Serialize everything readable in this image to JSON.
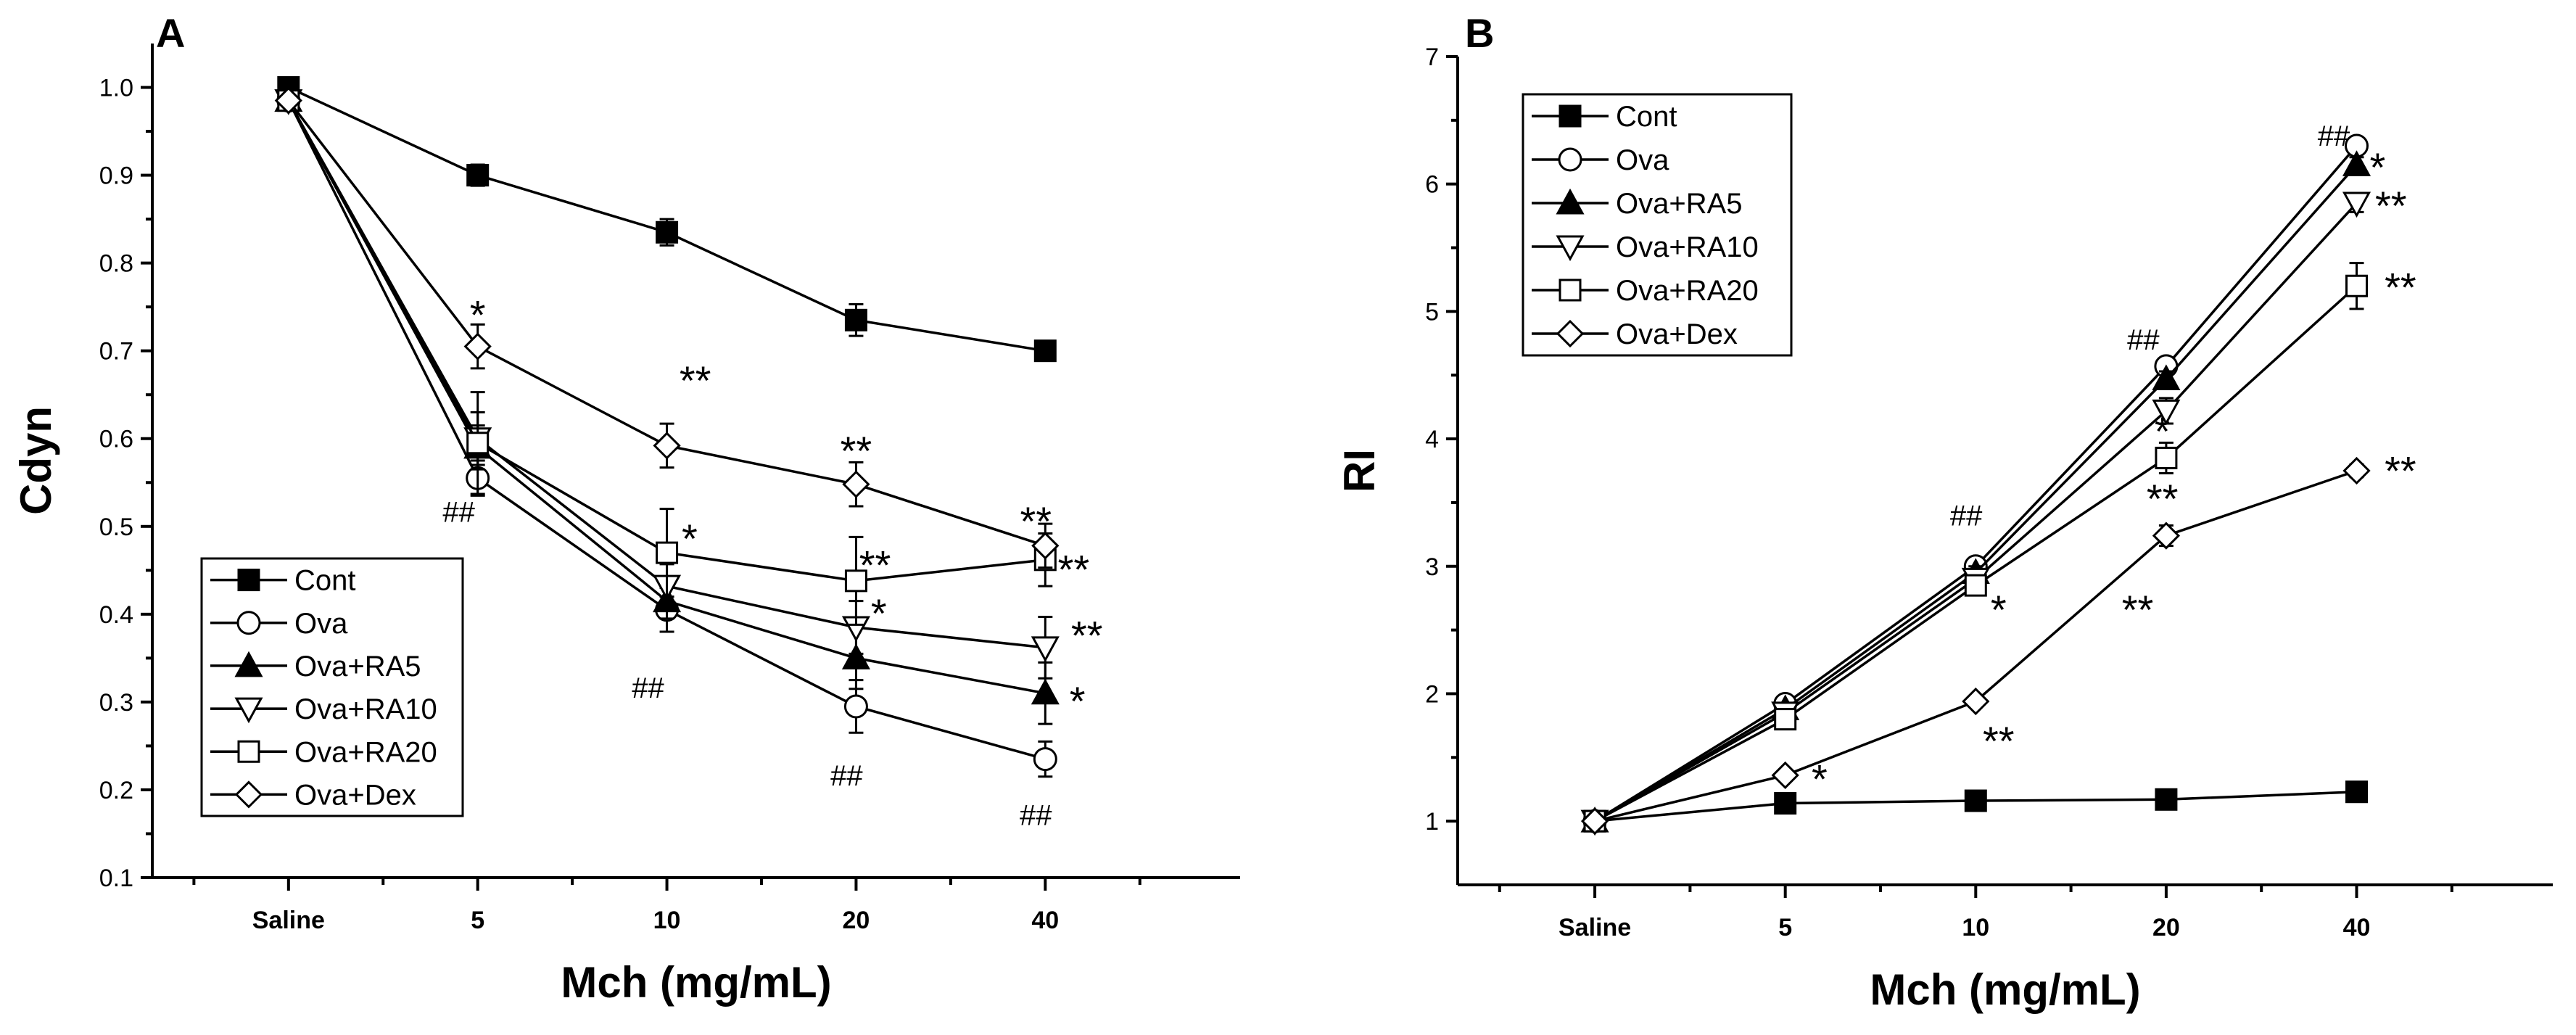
{
  "chart_data": [
    {
      "panel": "A",
      "type": "line",
      "xlabel": "Mch (mg/mL)",
      "ylabel": "Cdyn",
      "categories": [
        "Saline",
        "5",
        "10",
        "20",
        "40"
      ],
      "ylim": [
        0.1,
        1.05
      ],
      "yticks": [
        "0.1",
        "0.2",
        "0.3",
        "0.4",
        "0.5",
        "0.6",
        "0.7",
        "0.8",
        "0.9",
        "1.0"
      ],
      "legend_position": "bottom-left",
      "series": [
        {
          "name": "Cont",
          "marker": "filled-square",
          "values": [
            1.0,
            0.9,
            0.835,
            0.735,
            0.7
          ],
          "errors": [
            0,
            0.012,
            0.015,
            0.018,
            0.01
          ]
        },
        {
          "name": "Ova",
          "marker": "open-circle",
          "values": [
            0.985,
            0.555,
            0.405,
            0.295,
            0.235
          ],
          "errors": [
            0,
            0.02,
            0.025,
            0.03,
            0.02
          ]
        },
        {
          "name": "Ova+RA5",
          "marker": "filled-triangle",
          "values": [
            0.985,
            0.59,
            0.415,
            0.35,
            0.31
          ],
          "errors": [
            0,
            0.025,
            0.02,
            0.035,
            0.035
          ]
        },
        {
          "name": "Ova+RA10",
          "marker": "open-triangle-down",
          "values": [
            0.985,
            0.6,
            0.432,
            0.385,
            0.362
          ],
          "errors": [
            0,
            0.03,
            0.025,
            0.03,
            0.035
          ]
        },
        {
          "name": "Ova+RA20",
          "marker": "open-square",
          "values": [
            0.985,
            0.595,
            0.47,
            0.438,
            0.462
          ],
          "errors": [
            0,
            0.058,
            0.05,
            0.05,
            0.03
          ]
        },
        {
          "name": "Ova+Dex",
          "marker": "open-diamond",
          "values": [
            0.985,
            0.705,
            0.592,
            0.548,
            0.478
          ],
          "errors": [
            0,
            0.025,
            0.025,
            0.025,
            0.025
          ]
        }
      ],
      "annotations": [
        {
          "text": "*",
          "cat": 1.0,
          "y": 0.725,
          "size": "star"
        },
        {
          "text": "##",
          "cat": 0.9,
          "y": 0.505,
          "size": "hash"
        },
        {
          "text": "**",
          "cat": 2.15,
          "y": 0.65,
          "size": "star"
        },
        {
          "text": "*",
          "cat": 2.12,
          "y": 0.47,
          "size": "star"
        },
        {
          "text": "##",
          "cat": 1.9,
          "y": 0.305,
          "size": "hash"
        },
        {
          "text": "**",
          "cat": 3.0,
          "y": 0.57,
          "size": "star"
        },
        {
          "text": "**",
          "cat": 3.1,
          "y": 0.44,
          "size": "star"
        },
        {
          "text": "*",
          "cat": 3.12,
          "y": 0.385,
          "size": "star"
        },
        {
          "text": "##",
          "cat": 2.95,
          "y": 0.205,
          "size": "hash"
        },
        {
          "text": "**",
          "cat": 3.95,
          "y": 0.49,
          "size": "star"
        },
        {
          "text": "**",
          "cat": 4.15,
          "y": 0.435,
          "size": "star"
        },
        {
          "text": "**",
          "cat": 4.22,
          "y": 0.36,
          "size": "star"
        },
        {
          "text": "*",
          "cat": 4.17,
          "y": 0.285,
          "size": "star"
        },
        {
          "text": "##",
          "cat": 3.95,
          "y": 0.16,
          "size": "hash"
        }
      ]
    },
    {
      "panel": "B",
      "type": "line",
      "xlabel": "Mch (mg/mL)",
      "ylabel": "RI",
      "categories": [
        "Saline",
        "5",
        "10",
        "20",
        "40"
      ],
      "ylim": [
        0.5,
        7.0
      ],
      "yticks": [
        "1",
        "2",
        "3",
        "4",
        "5",
        "6",
        "7"
      ],
      "legend_position": "top-left",
      "series": [
        {
          "name": "Cont",
          "marker": "filled-square",
          "values": [
            1.0,
            1.14,
            1.16,
            1.17,
            1.23
          ],
          "errors": [
            0,
            0.03,
            0.03,
            0.03,
            0.03
          ]
        },
        {
          "name": "Ova",
          "marker": "open-circle",
          "values": [
            1.0,
            1.92,
            3.0,
            4.57,
            6.3
          ],
          "errors": [
            0,
            0.04,
            0.05,
            0.06,
            0.05
          ]
        },
        {
          "name": "Ova+RA5",
          "marker": "filled-triangle",
          "values": [
            1.0,
            1.88,
            2.95,
            4.47,
            6.15
          ],
          "errors": [
            0,
            0.04,
            0.05,
            0.06,
            0.06
          ]
        },
        {
          "name": "Ova+RA10",
          "marker": "open-triangle-down",
          "values": [
            1.0,
            1.85,
            2.9,
            4.22,
            5.85
          ],
          "errors": [
            0,
            0.04,
            0.05,
            0.1,
            0.07
          ]
        },
        {
          "name": "Ova+RA20",
          "marker": "open-square",
          "values": [
            1.0,
            1.8,
            2.85,
            3.85,
            5.2
          ],
          "errors": [
            0,
            0.04,
            0.05,
            0.12,
            0.18
          ]
        },
        {
          "name": "Ova+Dex",
          "marker": "open-diamond",
          "values": [
            1.0,
            1.36,
            1.94,
            3.24,
            3.75
          ],
          "errors": [
            0,
            0.03,
            0.04,
            0.08,
            0.05
          ]
        }
      ],
      "annotations": [
        {
          "text": "*",
          "cat": 1.18,
          "y": 1.22,
          "size": "star"
        },
        {
          "text": "##",
          "cat": 1.95,
          "y": 3.32,
          "size": "hash"
        },
        {
          "text": "*",
          "cat": 2.12,
          "y": 2.55,
          "size": "star"
        },
        {
          "text": "**",
          "cat": 2.12,
          "y": 1.52,
          "size": "star"
        },
        {
          "text": "##",
          "cat": 2.88,
          "y": 4.7,
          "size": "hash"
        },
        {
          "text": "*",
          "cat": 2.98,
          "y": 3.95,
          "size": "star"
        },
        {
          "text": "**",
          "cat": 2.98,
          "y": 3.42,
          "size": "star"
        },
        {
          "text": "**",
          "cat": 2.85,
          "y": 2.55,
          "size": "star"
        },
        {
          "text": "##",
          "cat": 3.88,
          "y": 6.3,
          "size": "hash"
        },
        {
          "text": "*",
          "cat": 4.11,
          "y": 6.02,
          "size": "star"
        },
        {
          "text": "**",
          "cat": 4.18,
          "y": 5.72,
          "size": "star"
        },
        {
          "text": "**",
          "cat": 4.23,
          "y": 5.08,
          "size": "star"
        },
        {
          "text": "**",
          "cat": 4.23,
          "y": 3.64,
          "size": "star"
        }
      ]
    }
  ]
}
